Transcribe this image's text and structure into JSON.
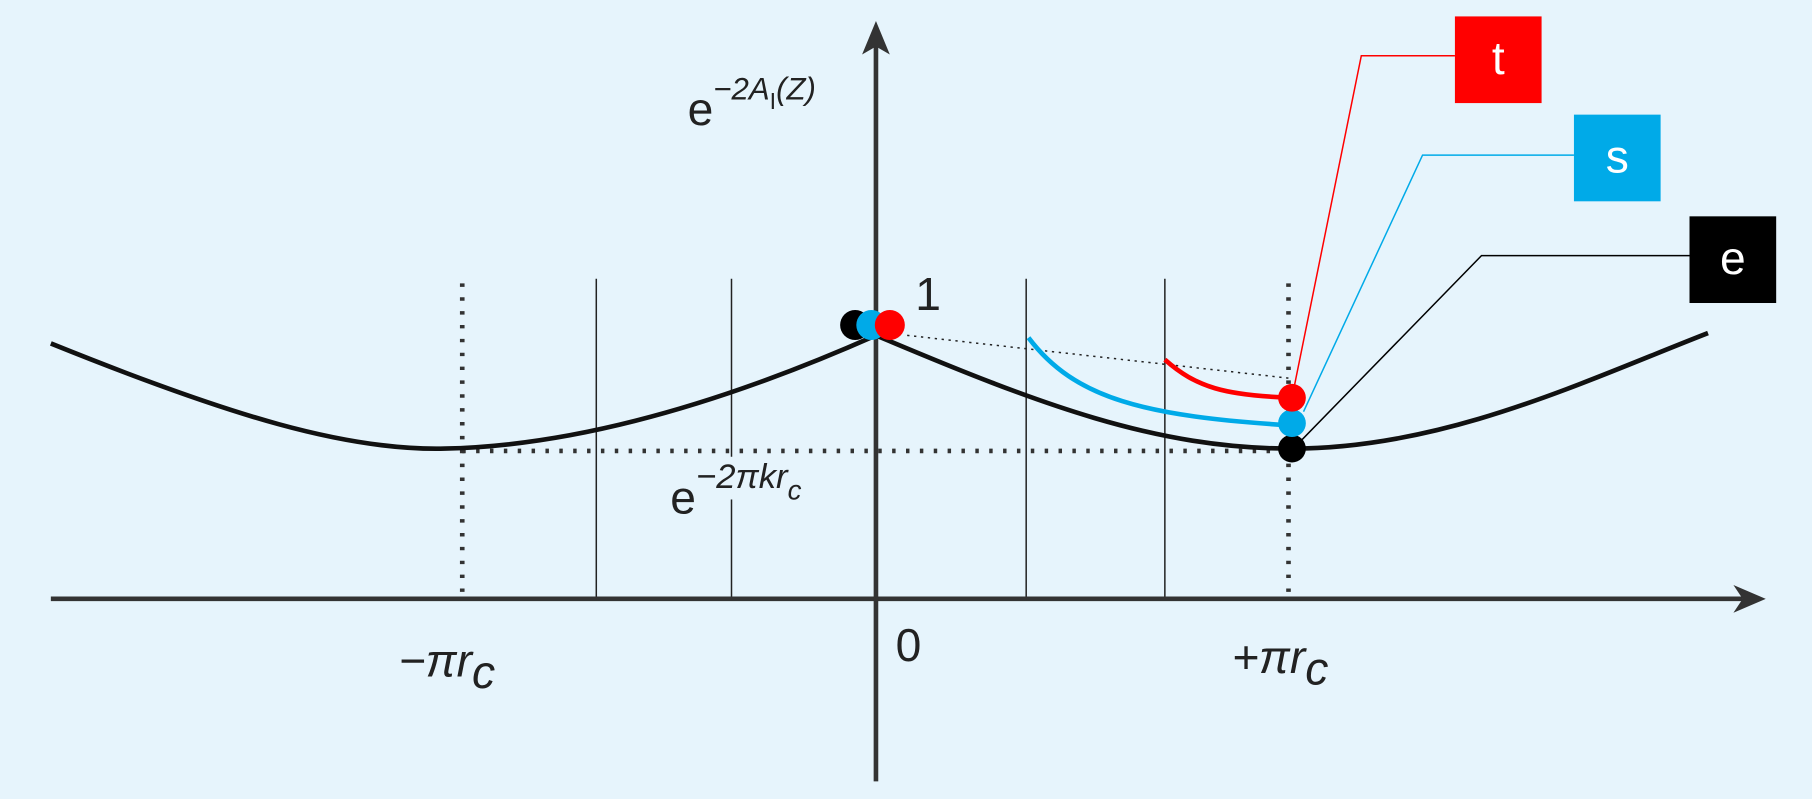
{
  "y_axis_label": {
    "base": "e",
    "exponent": "−2A",
    "exponent_sub": "I",
    "exponent_tail": "(Z)"
  },
  "y_one": "1",
  "y_min_label": {
    "base": "e",
    "exponent": "−2πkr",
    "exponent_sub": "c"
  },
  "x_labels": [
    {
      "main": "−πr",
      "sub": "c"
    },
    {
      "main": "0"
    },
    {
      "main": "+πr",
      "sub": "c"
    }
  ],
  "legend": [
    {
      "label": "t",
      "color": "#ff0000"
    },
    {
      "label": "s",
      "color": "#00aae8"
    },
    {
      "label": "e",
      "color": "#000000"
    }
  ]
}
